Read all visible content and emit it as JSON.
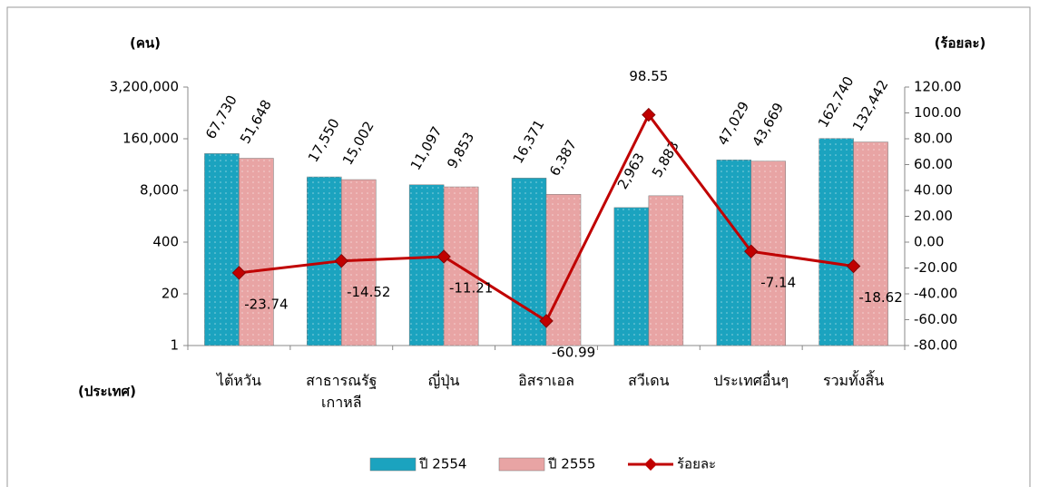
{
  "chart_data": {
    "type": "bar",
    "y_title": "(คน)",
    "y2_title": "(ร้อยละ)",
    "x_title": "(ประเทศ)",
    "categories": [
      "ไต้หวัน",
      "สาธารณรัฐเกาหลี",
      "ญี่ปุ่น",
      "อิสราเอล",
      "สวีเดน",
      "ประเทศอื่นๆ",
      "รวมทั้งสิ้น"
    ],
    "series": [
      {
        "name": "ปี 2554",
        "color": "#1ba3bf",
        "type": "bar",
        "values": [
          67730,
          17550,
          11097,
          16371,
          2963,
          47029,
          162740
        ],
        "value_labels": [
          "67,730",
          "17,550",
          "11,097",
          "16,371",
          "2,963",
          "47,029",
          "162,740"
        ]
      },
      {
        "name": "ปี 2555",
        "color": "#e8a4a4",
        "type": "bar",
        "values": [
          51648,
          15002,
          9853,
          6387,
          5883,
          43669,
          132442
        ],
        "value_labels": [
          "51,648",
          "15,002",
          "9,853",
          "6,387",
          "5,883",
          "43,669",
          "132,442"
        ]
      },
      {
        "name": "ร้อยละ",
        "color": "#c00000",
        "type": "line",
        "axis": "y2",
        "values": [
          -23.74,
          -14.52,
          -11.21,
          -60.99,
          98.55,
          -7.14,
          -18.62
        ]
      }
    ],
    "log_scale": true,
    "ylim": [
      1,
      3200000
    ],
    "yticks": [
      1,
      20,
      400,
      {
        "value": 8000,
        "label": "8,000"
      },
      {
        "value": 160000,
        "label": "160,000"
      },
      {
        "value": 3200000,
        "label": "3,200,000"
      }
    ],
    "y2lim": [
      -80,
      120
    ],
    "y2ticks": [
      {
        "value": -80,
        "label": "-80.00"
      },
      {
        "value": -60,
        "label": "-60.00"
      },
      {
        "value": -40,
        "label": "-40.00"
      },
      {
        "value": -20,
        "label": "-20.00"
      },
      {
        "value": 0,
        "label": "0.00"
      },
      {
        "value": 20,
        "label": "20.00"
      },
      {
        "value": 40,
        "label": "40.00"
      },
      {
        "value": 60,
        "label": "60.00"
      },
      {
        "value": 80,
        "label": "80.00"
      },
      {
        "value": 100,
        "label": "100.00"
      },
      {
        "value": 120,
        "label": "120.00"
      }
    ],
    "legend": "bottom"
  }
}
